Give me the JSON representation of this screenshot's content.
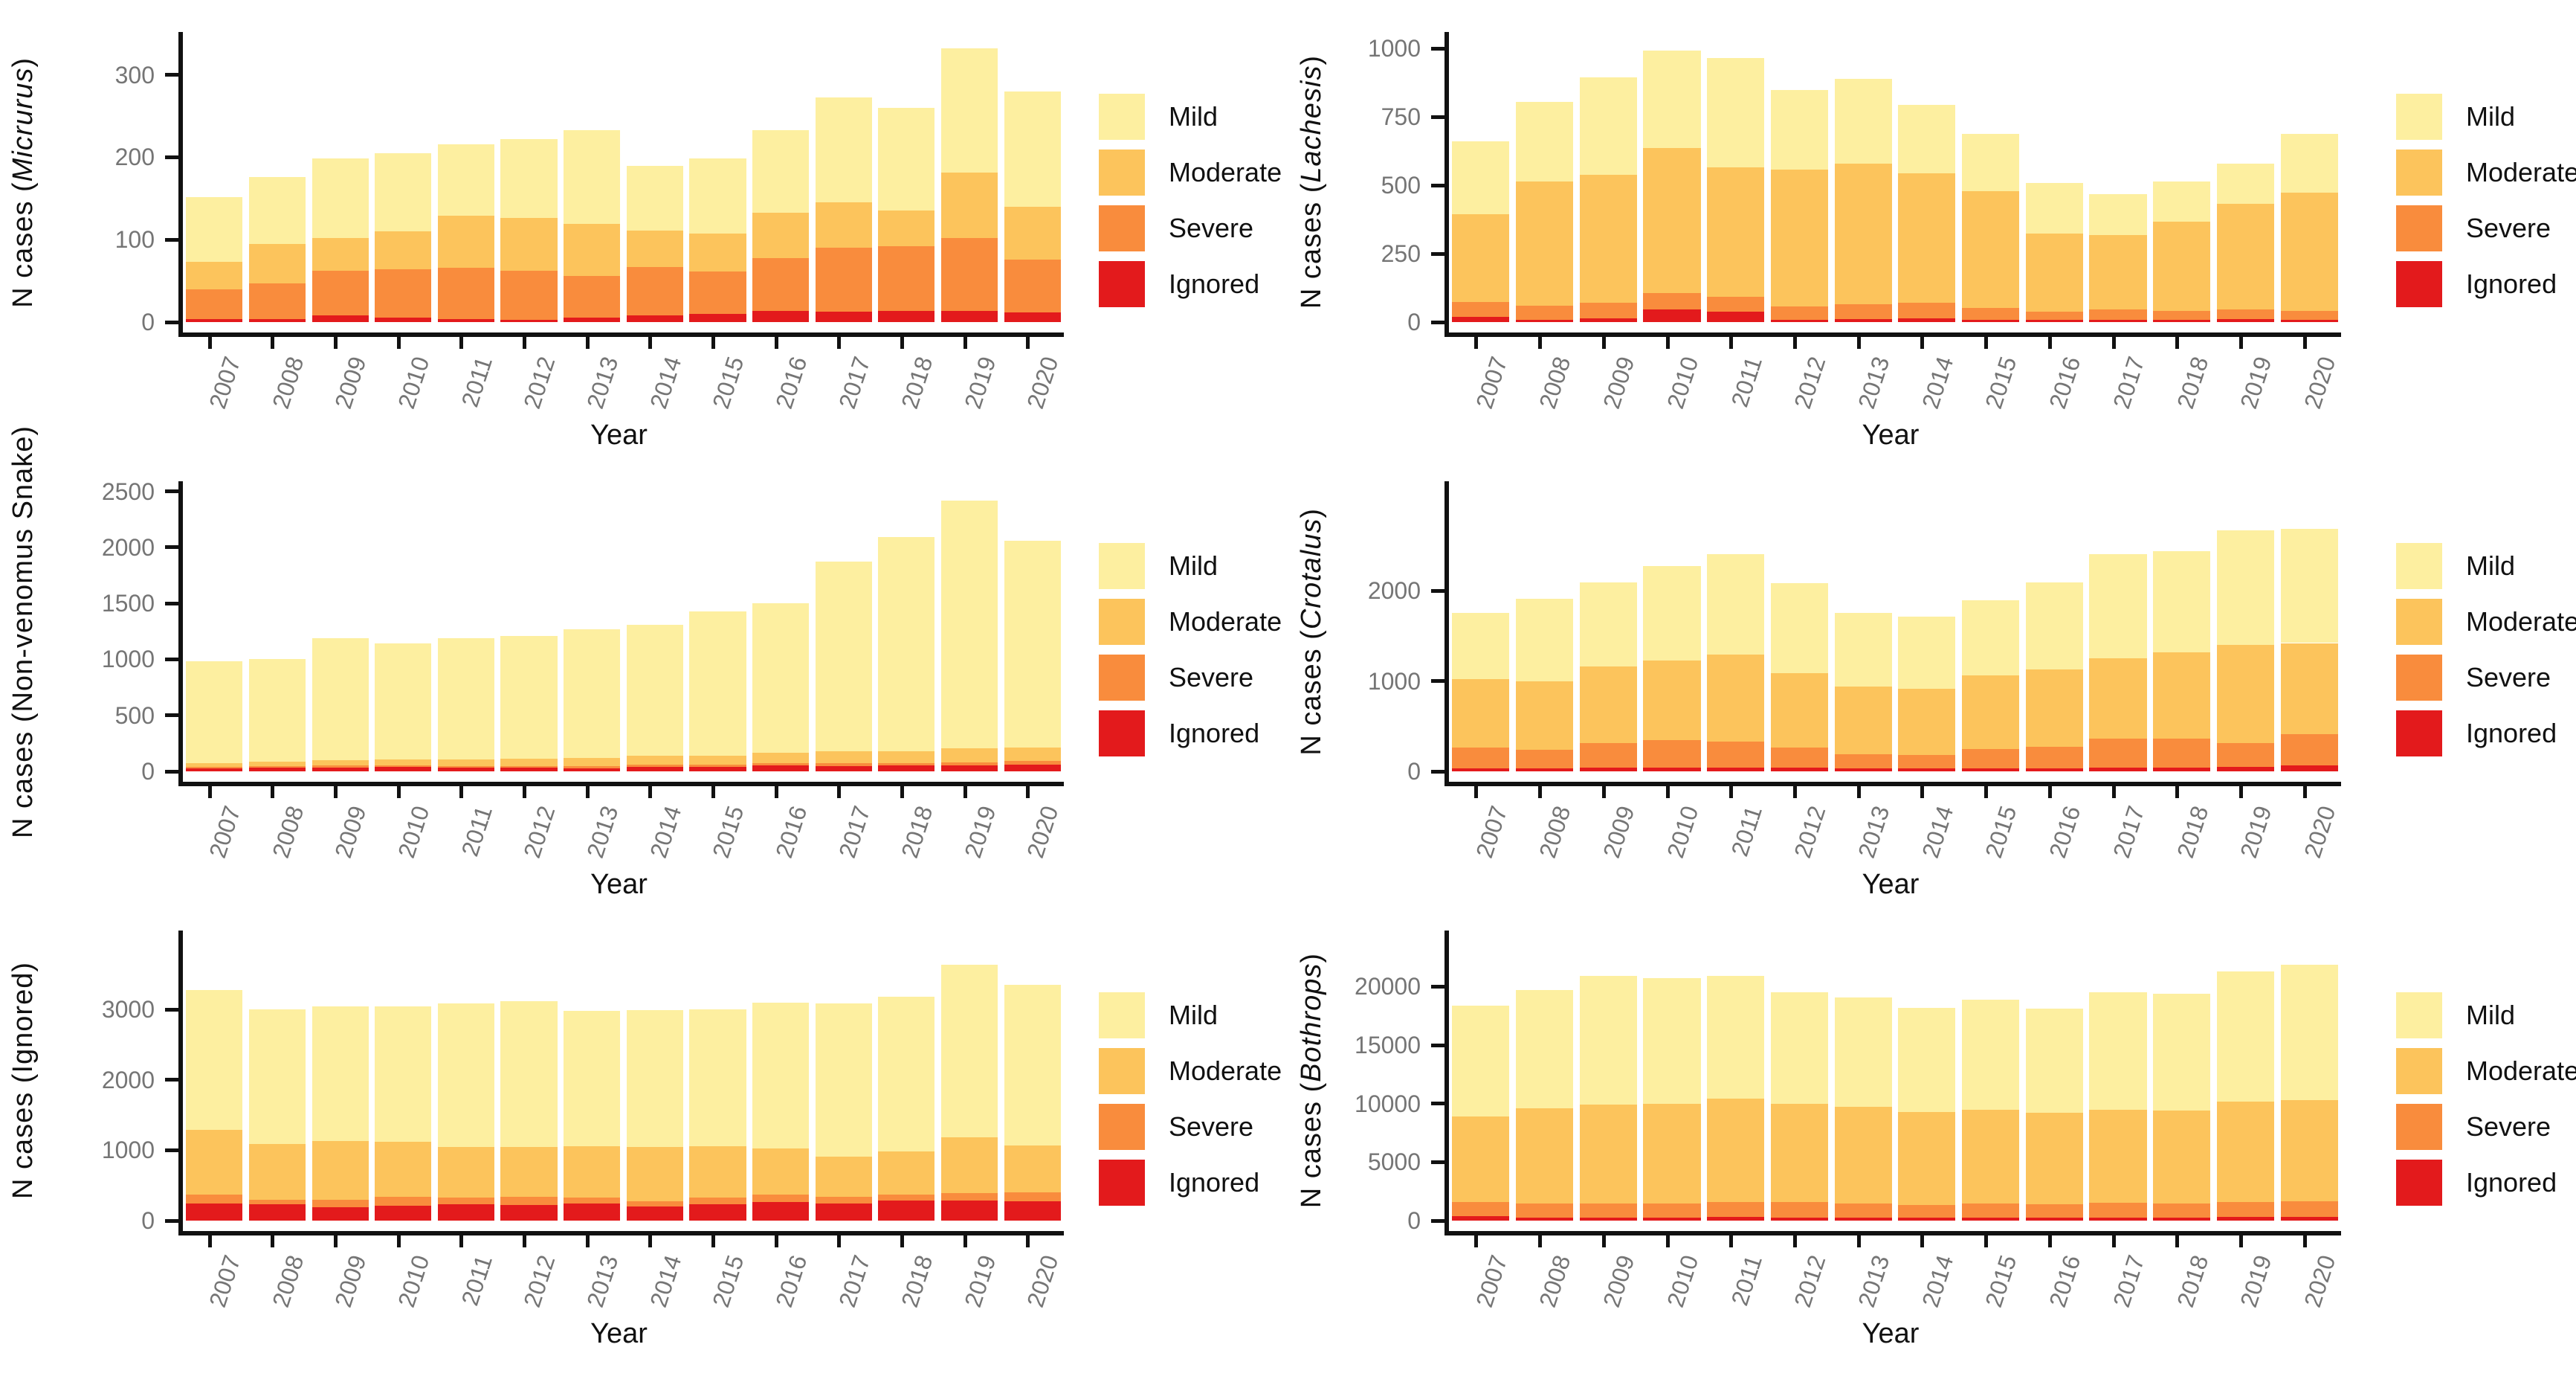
{
  "figure": {
    "xlabel": "Year",
    "background": "#ffffff"
  },
  "colors": {
    "mild": "#FDEFA0",
    "moderate": "#FCC45C",
    "severe": "#F98C3D",
    "ignored": "#E31A1C",
    "axis": "#111111",
    "tick_label": "#757575"
  },
  "legend_labels": [
    "Mild",
    "Moderate",
    "Severe",
    "Ignored"
  ],
  "chart_data": [
    {
      "type": "bar",
      "stacked": true,
      "grid": false,
      "legend_position": "right",
      "position": "top-left",
      "ylabel_prefix": "N cases (",
      "ylabel_name": "Micrurus",
      "ylabel_italic": true,
      "ylabel_suffix": ")",
      "xlabel": "Year",
      "categories": [
        "2007",
        "2008",
        "2009",
        "2010",
        "2011",
        "2012",
        "2013",
        "2014",
        "2015",
        "2016",
        "2017",
        "2018",
        "2019",
        "2020"
      ],
      "yticks": [
        0,
        100,
        200,
        300
      ],
      "ymax": 352,
      "series": [
        {
          "name": "Ignored",
          "color_key": "ignored",
          "values": [
            4,
            4,
            8,
            5,
            4,
            3,
            5,
            8,
            10,
            14,
            13,
            14,
            14,
            12
          ]
        },
        {
          "name": "Severe",
          "color_key": "severe",
          "values": [
            36,
            43,
            54,
            59,
            62,
            59,
            51,
            59,
            51,
            64,
            77,
            78,
            88,
            64
          ]
        },
        {
          "name": "Moderate",
          "color_key": "moderate",
          "values": [
            33,
            48,
            40,
            46,
            63,
            64,
            63,
            44,
            46,
            55,
            55,
            43,
            79,
            64
          ]
        },
        {
          "name": "Mild",
          "color_key": "mild",
          "values": [
            79,
            81,
            97,
            95,
            87,
            96,
            114,
            79,
            92,
            100,
            128,
            125,
            151,
            140
          ]
        }
      ]
    },
    {
      "type": "bar",
      "stacked": true,
      "grid": false,
      "legend_position": "right",
      "position": "top-right",
      "ylabel_prefix": "N cases (",
      "ylabel_name": "Lachesis",
      "ylabel_italic": true,
      "ylabel_suffix": ")",
      "xlabel": "Year",
      "categories": [
        "2007",
        "2008",
        "2009",
        "2010",
        "2011",
        "2012",
        "2013",
        "2014",
        "2015",
        "2016",
        "2017",
        "2018",
        "2019",
        "2020"
      ],
      "yticks": [
        0,
        250,
        500,
        750,
        1000
      ],
      "ymax": 1060,
      "series": [
        {
          "name": "Ignored",
          "color_key": "ignored",
          "values": [
            18,
            9,
            14,
            45,
            37,
            9,
            10,
            14,
            8,
            8,
            8,
            8,
            10,
            8
          ]
        },
        {
          "name": "Severe",
          "color_key": "severe",
          "values": [
            56,
            51,
            56,
            62,
            56,
            47,
            55,
            58,
            43,
            29,
            38,
            34,
            36,
            34
          ]
        },
        {
          "name": "Moderate",
          "color_key": "moderate",
          "values": [
            319,
            455,
            468,
            529,
            473,
            501,
            515,
            471,
            427,
            286,
            272,
            324,
            385,
            431
          ]
        },
        {
          "name": "Mild",
          "color_key": "mild",
          "values": [
            267,
            290,
            356,
            356,
            398,
            290,
            309,
            252,
            210,
            186,
            150,
            149,
            149,
            215
          ]
        }
      ]
    },
    {
      "type": "bar",
      "stacked": true,
      "grid": false,
      "legend_position": "right",
      "position": "middle-left",
      "ylabel_prefix": "N cases (",
      "ylabel_name": "Non-venomus Snake",
      "ylabel_italic": false,
      "ylabel_suffix": ")",
      "xlabel": "Year",
      "categories": [
        "2007",
        "2008",
        "2009",
        "2010",
        "2011",
        "2012",
        "2013",
        "2014",
        "2015",
        "2016",
        "2017",
        "2018",
        "2019",
        "2020"
      ],
      "yticks": [
        0,
        500,
        1000,
        1500,
        2000,
        2500
      ],
      "ymax": 2590,
      "series": [
        {
          "name": "Ignored",
          "color_key": "ignored",
          "values": [
            25,
            30,
            35,
            40,
            30,
            30,
            25,
            40,
            40,
            55,
            45,
            50,
            50,
            60
          ]
        },
        {
          "name": "Severe",
          "color_key": "severe",
          "values": [
            15,
            15,
            15,
            15,
            15,
            15,
            20,
            20,
            20,
            20,
            25,
            25,
            30,
            30
          ]
        },
        {
          "name": "Moderate",
          "color_key": "moderate",
          "values": [
            35,
            40,
            50,
            50,
            60,
            65,
            75,
            80,
            80,
            90,
            110,
            105,
            125,
            125
          ]
        },
        {
          "name": "Mild",
          "color_key": "mild",
          "values": [
            905,
            915,
            1090,
            1035,
            1085,
            1100,
            1150,
            1170,
            1290,
            1335,
            1690,
            1910,
            2215,
            1845
          ]
        }
      ]
    },
    {
      "type": "bar",
      "stacked": true,
      "grid": false,
      "legend_position": "right",
      "position": "middle-right",
      "ylabel_prefix": "N cases (",
      "ylabel_name": "Crotalus",
      "ylabel_italic": true,
      "ylabel_suffix": ")",
      "xlabel": "Year",
      "categories": [
        "2007",
        "2008",
        "2009",
        "2010",
        "2011",
        "2012",
        "2013",
        "2014",
        "2015",
        "2016",
        "2017",
        "2018",
        "2019",
        "2020"
      ],
      "yticks": [
        0,
        1000,
        2000
      ],
      "ymax": 3210,
      "series": [
        {
          "name": "Ignored",
          "color_key": "ignored",
          "values": [
            35,
            30,
            40,
            45,
            40,
            45,
            35,
            30,
            30,
            35,
            40,
            45,
            50,
            70
          ]
        },
        {
          "name": "Severe",
          "color_key": "severe",
          "values": [
            225,
            205,
            275,
            300,
            290,
            215,
            155,
            150,
            220,
            240,
            320,
            315,
            265,
            345
          ]
        },
        {
          "name": "Moderate",
          "color_key": "moderate",
          "values": [
            760,
            765,
            845,
            885,
            960,
            830,
            750,
            730,
            810,
            855,
            890,
            960,
            1085,
            1005
          ]
        },
        {
          "name": "Mild",
          "color_key": "mild",
          "values": [
            730,
            910,
            930,
            1040,
            1110,
            990,
            810,
            800,
            830,
            960,
            1150,
            1120,
            1270,
            1260
          ]
        }
      ]
    },
    {
      "type": "bar",
      "stacked": true,
      "grid": false,
      "legend_position": "right",
      "position": "bottom-left",
      "ylabel_prefix": "N cases (",
      "ylabel_name": "Ignored",
      "ylabel_italic": false,
      "ylabel_suffix": ")",
      "xlabel": "Year",
      "categories": [
        "2007",
        "2008",
        "2009",
        "2010",
        "2011",
        "2012",
        "2013",
        "2014",
        "2015",
        "2016",
        "2017",
        "2018",
        "2019",
        "2020"
      ],
      "yticks": [
        0,
        1000,
        2000,
        3000
      ],
      "ymax": 4120,
      "series": [
        {
          "name": "Ignored",
          "color_key": "ignored",
          "values": [
            245,
            230,
            190,
            210,
            230,
            220,
            240,
            200,
            230,
            265,
            245,
            285,
            290,
            280
          ]
        },
        {
          "name": "Severe",
          "color_key": "severe",
          "values": [
            130,
            70,
            110,
            130,
            100,
            120,
            85,
            75,
            95,
            110,
            95,
            90,
            105,
            125
          ]
        },
        {
          "name": "Moderate",
          "color_key": "moderate",
          "values": [
            915,
            790,
            830,
            780,
            720,
            710,
            735,
            775,
            735,
            655,
            570,
            605,
            785,
            665
          ]
        },
        {
          "name": "Mild",
          "color_key": "mild",
          "values": [
            1980,
            1910,
            1910,
            1920,
            2040,
            2070,
            1920,
            1940,
            1940,
            2070,
            2170,
            2200,
            2450,
            2280
          ]
        }
      ]
    },
    {
      "type": "bar",
      "stacked": true,
      "grid": false,
      "legend_position": "right",
      "position": "bottom-right",
      "ylabel_prefix": "N cases (",
      "ylabel_name": "Bothrops",
      "ylabel_italic": true,
      "ylabel_suffix": ")",
      "xlabel": "Year",
      "categories": [
        "2007",
        "2008",
        "2009",
        "2010",
        "2011",
        "2012",
        "2013",
        "2014",
        "2015",
        "2016",
        "2017",
        "2018",
        "2019",
        "2020"
      ],
      "yticks": [
        0,
        5000,
        10000,
        15000,
        20000
      ],
      "ymax": 24800,
      "series": [
        {
          "name": "Ignored",
          "color_key": "ignored",
          "values": [
            400,
            250,
            270,
            270,
            320,
            270,
            270,
            250,
            270,
            250,
            270,
            250,
            320,
            350
          ]
        },
        {
          "name": "Severe",
          "color_key": "severe",
          "values": [
            1160,
            1200,
            1210,
            1180,
            1280,
            1330,
            1180,
            1090,
            1180,
            1140,
            1230,
            1200,
            1280,
            1330
          ]
        },
        {
          "name": "Moderate",
          "color_key": "moderate",
          "values": [
            7340,
            8150,
            8420,
            8550,
            8800,
            8400,
            8250,
            7960,
            8050,
            7810,
            8000,
            7950,
            8600,
            8620
          ]
        },
        {
          "name": "Mild",
          "color_key": "mild",
          "values": [
            9500,
            10100,
            11000,
            10700,
            10500,
            9500,
            9400,
            8900,
            9400,
            8900,
            10000,
            10000,
            11100,
            11600
          ]
        }
      ]
    }
  ]
}
